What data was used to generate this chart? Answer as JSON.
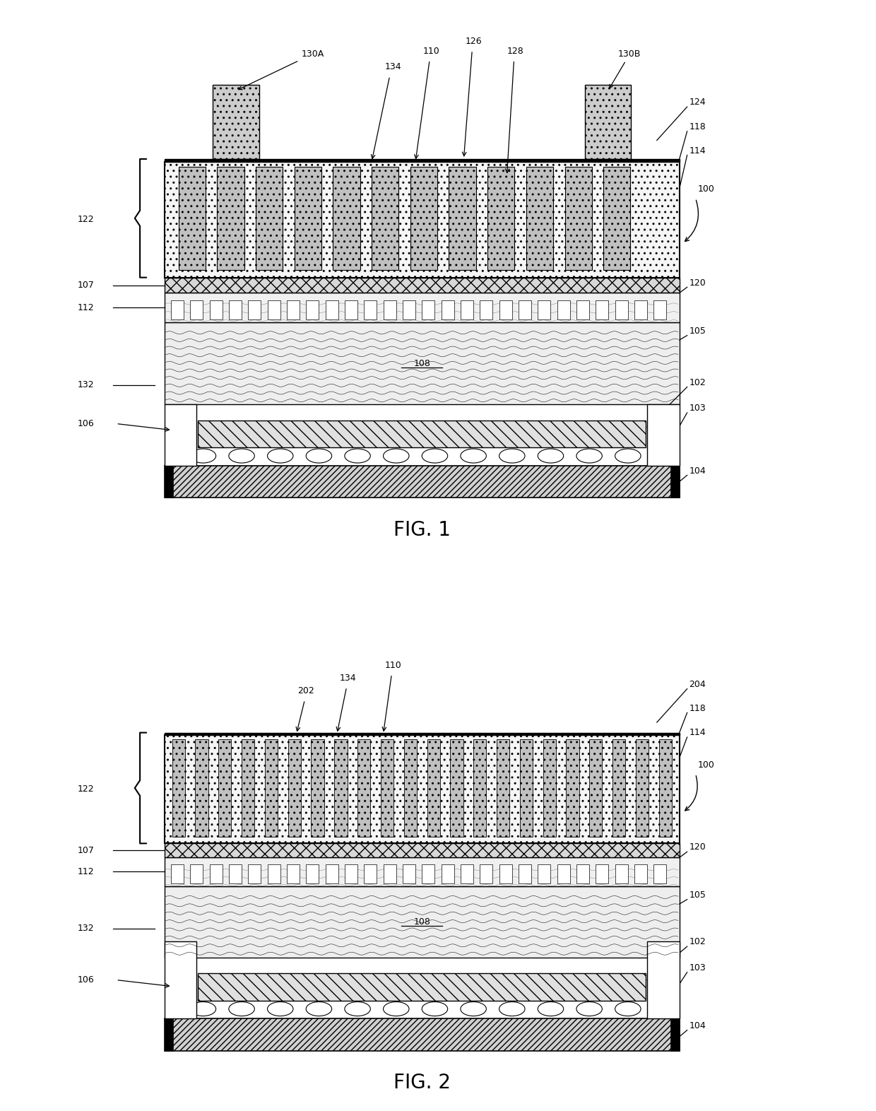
{
  "fig_width": 12.4,
  "fig_height": 15.72,
  "bg_color": "#ffffff",
  "fig1_title": "FIG. 1",
  "fig2_title": "FIG. 2"
}
